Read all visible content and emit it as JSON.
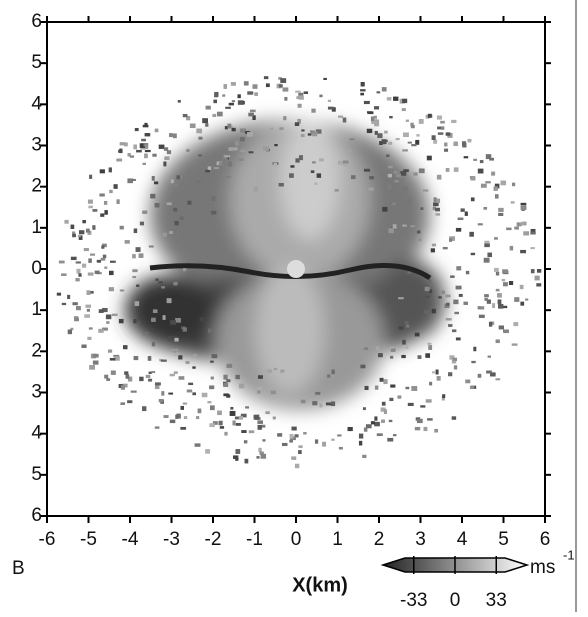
{
  "chart_data": {
    "type": "radar-image",
    "panel_label": "B",
    "xlabel": "X(km)",
    "xlim": [
      -6,
      6
    ],
    "ylim": [
      -6,
      6
    ],
    "xticks": [
      -6,
      -5,
      -4,
      -3,
      -2,
      -1,
      0,
      1,
      2,
      3,
      4,
      5,
      6
    ],
    "yticks": [
      {
        "value": -6,
        "label": "6"
      },
      {
        "value": -5,
        "label": "5"
      },
      {
        "value": -4,
        "label": "4"
      },
      {
        "value": -3,
        "label": "3"
      },
      {
        "value": -2,
        "label": "2"
      },
      {
        "value": -1,
        "label": "1"
      },
      0,
      1,
      2,
      3,
      4,
      5,
      6
    ],
    "colorbar": {
      "lim": [
        -40,
        40
      ],
      "ticks": [
        -33,
        0,
        33
      ],
      "unit": "ms",
      "unit_exponent": "-1",
      "colors": [
        "#222222",
        "#ffffff"
      ]
    }
  }
}
